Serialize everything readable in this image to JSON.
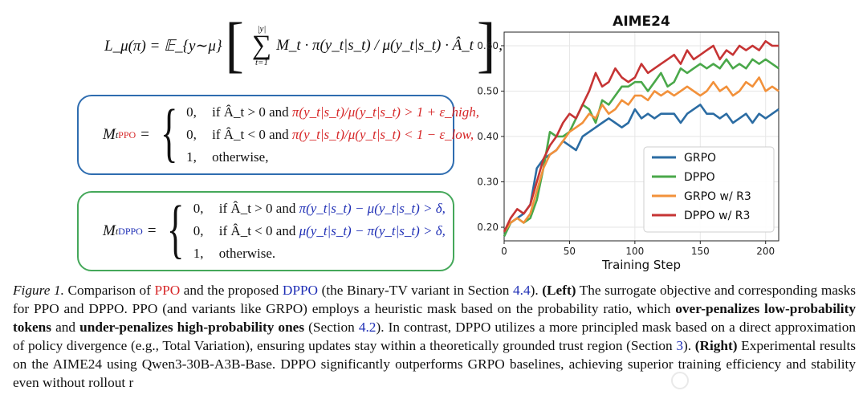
{
  "formula": {
    "lhs": "L_μ(π) = 𝔼_{y∼μ}",
    "sum_upper": "|y|",
    "sum_lower": "t=1",
    "term": "M_t · π(y_t|s_t) / μ(y_t|s_t) · Â_t"
  },
  "ppo_mask": {
    "label": "PPO",
    "rows": [
      {
        "value": "0,",
        "cond": "if Â_t > 0 and",
        "expr": "π(y_t|s_t)/μ(y_t|s_t) > 1 + ε_high,"
      },
      {
        "value": "0,",
        "cond": "if Â_t < 0 and",
        "expr": "π(y_t|s_t)/μ(y_t|s_t) < 1 − ε_low,"
      },
      {
        "value": "1,",
        "cond": "otherwise,",
        "expr": ""
      }
    ]
  },
  "dppo_mask": {
    "label": "DPPO",
    "rows": [
      {
        "value": "0,",
        "cond": "if Â_t > 0 and",
        "expr": "π(y_t|s_t) − μ(y_t|s_t) > δ,"
      },
      {
        "value": "0,",
        "cond": "if Â_t < 0 and",
        "expr": "μ(y_t|s_t) − π(y_t|s_t) > δ,"
      },
      {
        "value": "1,",
        "cond": "otherwise.",
        "expr": ""
      }
    ]
  },
  "chart_data": {
    "type": "line",
    "title": "AIME24",
    "xlabel": "Training Step",
    "ylabel": "",
    "xlim": [
      0,
      210
    ],
    "ylim": [
      0.17,
      0.63
    ],
    "xticks": [
      0,
      50,
      100,
      150,
      200
    ],
    "yticks": [
      0.2,
      0.3,
      0.4,
      0.5,
      0.6
    ],
    "grid": true,
    "legend_position": "lower-right",
    "x": [
      0,
      5,
      10,
      15,
      20,
      25,
      30,
      35,
      40,
      45,
      50,
      55,
      60,
      65,
      70,
      75,
      80,
      85,
      90,
      95,
      100,
      105,
      110,
      115,
      120,
      125,
      130,
      135,
      140,
      145,
      150,
      155,
      160,
      165,
      170,
      175,
      180,
      185,
      190,
      195,
      200,
      205,
      210
    ],
    "series": [
      {
        "name": "GRPO",
        "color": "#2b6ca3",
        "values": [
          0.18,
          0.21,
          0.22,
          0.23,
          0.25,
          0.33,
          0.35,
          0.36,
          0.37,
          0.39,
          0.38,
          0.37,
          0.4,
          0.41,
          0.42,
          0.43,
          0.44,
          0.43,
          0.42,
          0.43,
          0.46,
          0.44,
          0.45,
          0.44,
          0.45,
          0.45,
          0.45,
          0.43,
          0.45,
          0.46,
          0.47,
          0.45,
          0.45,
          0.44,
          0.45,
          0.43,
          0.44,
          0.45,
          0.43,
          0.45,
          0.44,
          0.45,
          0.46
        ]
      },
      {
        "name": "DPPO",
        "color": "#4aa84a",
        "values": [
          0.18,
          0.21,
          0.22,
          0.21,
          0.22,
          0.26,
          0.33,
          0.41,
          0.4,
          0.4,
          0.41,
          0.44,
          0.47,
          0.46,
          0.43,
          0.48,
          0.47,
          0.49,
          0.51,
          0.51,
          0.52,
          0.52,
          0.5,
          0.52,
          0.54,
          0.51,
          0.52,
          0.55,
          0.54,
          0.55,
          0.56,
          0.55,
          0.56,
          0.55,
          0.57,
          0.55,
          0.56,
          0.55,
          0.57,
          0.56,
          0.57,
          0.56,
          0.55
        ]
      },
      {
        "name": "GRPO w/ R3",
        "color": "#f2913b",
        "values": [
          0.19,
          0.21,
          0.22,
          0.21,
          0.23,
          0.28,
          0.33,
          0.36,
          0.37,
          0.39,
          0.41,
          0.42,
          0.43,
          0.45,
          0.44,
          0.47,
          0.45,
          0.46,
          0.48,
          0.47,
          0.49,
          0.49,
          0.48,
          0.5,
          0.49,
          0.5,
          0.49,
          0.5,
          0.51,
          0.5,
          0.49,
          0.5,
          0.52,
          0.5,
          0.51,
          0.49,
          0.5,
          0.52,
          0.51,
          0.53,
          0.5,
          0.51,
          0.5
        ]
      },
      {
        "name": "DPPO w/ R3",
        "color": "#c63434",
        "values": [
          0.19,
          0.22,
          0.24,
          0.23,
          0.25,
          0.3,
          0.35,
          0.38,
          0.4,
          0.43,
          0.45,
          0.44,
          0.47,
          0.5,
          0.54,
          0.51,
          0.52,
          0.55,
          0.53,
          0.52,
          0.53,
          0.56,
          0.54,
          0.55,
          0.56,
          0.57,
          0.58,
          0.56,
          0.59,
          0.57,
          0.58,
          0.59,
          0.6,
          0.57,
          0.59,
          0.58,
          0.6,
          0.59,
          0.6,
          0.59,
          0.61,
          0.6,
          0.6
        ]
      }
    ]
  },
  "caption": {
    "label": "Figure 1.",
    "t1": "Comparison of",
    "ppo": "PPO",
    "t2": "and the proposed",
    "dppo": "DPPO",
    "t3": "(the Binary-TV variant in Section",
    "ref1": "4.4",
    "t4": ").",
    "left": "(Left)",
    "t5": "The surrogate objective and corresponding masks for PPO and DPPO. PPO (and variants like GRPO) employs a heuristic mask based on the probability ratio, which",
    "b1": "over-penalizes low-probability tokens",
    "t6": "and",
    "b2": "under-penalizes high-probability ones",
    "t7": "(Section",
    "ref2": "4.2",
    "t8": "). In contrast, DPPO utilizes a more principled mask based on a direct approximation of policy divergence (e.g., Total Variation), ensuring updates stay within a theoretically grounded trust region (Section",
    "ref3": "3",
    "t9": ").",
    "right": "(Right)",
    "t10": "Experimental results on the AIME24 using Qwen3-30B-A3B-Base. DPPO significantly outperforms GRPO baselines, achieving superior training efficiency and stability even without rollout r"
  }
}
